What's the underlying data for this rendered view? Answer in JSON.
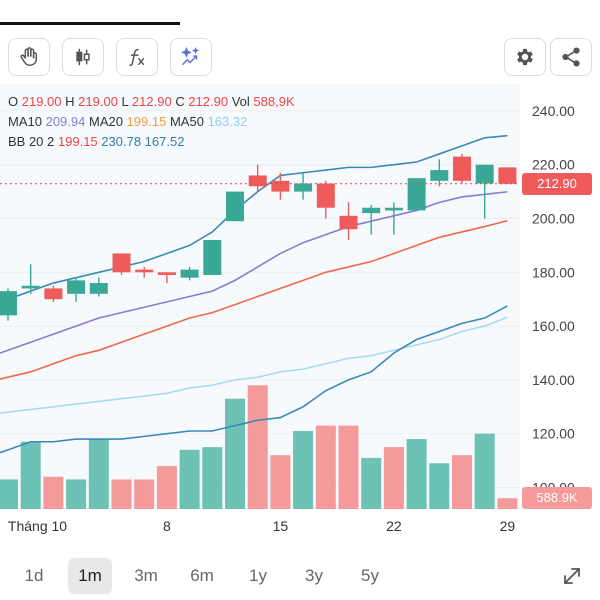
{
  "toolbar": {
    "buttons": [
      {
        "name": "hand-tool-button",
        "icon": "hand-icon"
      },
      {
        "name": "candle-type-button",
        "icon": "candlestick-icon"
      },
      {
        "name": "indicator-button",
        "icon": "function-icon"
      },
      {
        "name": "ai-analysis-button",
        "icon": "sparkle-chart-icon"
      }
    ],
    "right_buttons": [
      {
        "name": "settings-button",
        "icon": "gear-icon"
      },
      {
        "name": "share-button",
        "icon": "share-icon"
      }
    ]
  },
  "legend": {
    "o_label": "O",
    "o": "219.00",
    "h_label": "H",
    "h": "219.00",
    "l_label": "L",
    "l": "212.90",
    "c_label": "C",
    "c": "212.90",
    "vol_label": "Vol",
    "vol": "588,9K",
    "ma10_label": "MA10",
    "ma10": "209.94",
    "ma20_label": "MA20",
    "ma20": "199.15",
    "ma50_label": "MA50",
    "ma50": "163.32",
    "bb_label": "BB 20 2",
    "bb_mid": "199.15",
    "bb_up": "230.78",
    "bb_low": "167.52"
  },
  "badges": {
    "price": "212.90",
    "volume": "588.9K"
  },
  "colors": {
    "up": "#3aa897",
    "down": "#ef5b5b",
    "up_vol": "#6cc3b5",
    "down_vol": "#f49a9a",
    "bb": "#3b8ab5",
    "ma10": "#8b7bd1",
    "ma20": "#f06a4a",
    "ma50": "#a6dcf0",
    "grid": "#eeeeee",
    "price_line": "#e04a4a"
  },
  "chart_data": {
    "type": "candlestick",
    "y_ticks": [
      "240.00",
      "220.00",
      "200.00",
      "180.00",
      "160.00",
      "140.00",
      "120.00",
      "100.00"
    ],
    "y_tick_values": [
      240,
      220,
      200,
      180,
      160,
      140,
      120,
      100
    ],
    "ylim": [
      92,
      250
    ],
    "x_labels": [
      {
        "label": "Tháng 10",
        "index": 1.3
      },
      {
        "label": "8",
        "index": 7
      },
      {
        "label": "15",
        "index": 12
      },
      {
        "label": "22",
        "index": 17
      },
      {
        "label": "29",
        "index": 22
      }
    ],
    "candles": [
      {
        "o": 164,
        "h": 174,
        "l": 162,
        "c": 173
      },
      {
        "o": 174,
        "h": 183,
        "l": 172,
        "c": 175
      },
      {
        "o": 174,
        "h": 175,
        "l": 169,
        "c": 170
      },
      {
        "o": 172,
        "h": 178,
        "l": 169,
        "c": 177
      },
      {
        "o": 172,
        "h": 178,
        "l": 171,
        "c": 176
      },
      {
        "o": 187,
        "h": 187,
        "l": 179,
        "c": 180
      },
      {
        "o": 181,
        "h": 182,
        "l": 178,
        "c": 180
      },
      {
        "o": 180,
        "h": 180,
        "l": 176,
        "c": 179
      },
      {
        "o": 178,
        "h": 182,
        "l": 177,
        "c": 181
      },
      {
        "o": 179,
        "h": 192,
        "l": 179,
        "c": 192
      },
      {
        "o": 199,
        "h": 210,
        "l": 199,
        "c": 210
      },
      {
        "o": 216,
        "h": 220,
        "l": 210,
        "c": 212
      },
      {
        "o": 214,
        "h": 217,
        "l": 207,
        "c": 210
      },
      {
        "o": 210,
        "h": 217,
        "l": 207,
        "c": 213
      },
      {
        "o": 213,
        "h": 214,
        "l": 200,
        "c": 204
      },
      {
        "o": 201,
        "h": 206,
        "l": 192,
        "c": 196
      },
      {
        "o": 202,
        "h": 205,
        "l": 194,
        "c": 204
      },
      {
        "o": 203,
        "h": 206,
        "l": 194,
        "c": 204
      },
      {
        "o": 203,
        "h": 215,
        "l": 203,
        "c": 215
      },
      {
        "o": 214,
        "h": 222,
        "l": 212,
        "c": 218
      },
      {
        "o": 223,
        "h": 224,
        "l": 213,
        "c": 214
      },
      {
        "o": 213,
        "h": 220,
        "l": 200,
        "c": 220
      },
      {
        "o": 219,
        "h": 219,
        "l": 212.9,
        "c": 212.9
      }
    ],
    "volumes": [
      {
        "v": 103,
        "dir": "up"
      },
      {
        "v": 117,
        "dir": "up"
      },
      {
        "v": 104,
        "dir": "down"
      },
      {
        "v": 103,
        "dir": "up"
      },
      {
        "v": 118,
        "dir": "up"
      },
      {
        "v": 103,
        "dir": "down"
      },
      {
        "v": 103,
        "dir": "down"
      },
      {
        "v": 108,
        "dir": "down"
      },
      {
        "v": 114,
        "dir": "up"
      },
      {
        "v": 115,
        "dir": "up"
      },
      {
        "v": 133,
        "dir": "up"
      },
      {
        "v": 138,
        "dir": "down"
      },
      {
        "v": 112,
        "dir": "down"
      },
      {
        "v": 121,
        "dir": "up"
      },
      {
        "v": 123,
        "dir": "down"
      },
      {
        "v": 123,
        "dir": "down"
      },
      {
        "v": 111,
        "dir": "up"
      },
      {
        "v": 115,
        "dir": "down"
      },
      {
        "v": 118,
        "dir": "up"
      },
      {
        "v": 109,
        "dir": "up"
      },
      {
        "v": 112,
        "dir": "down"
      },
      {
        "v": 120,
        "dir": "up"
      },
      {
        "v": 96,
        "dir": "down"
      }
    ],
    "bb_upper": [
      170,
      173,
      176,
      178,
      180,
      182,
      184,
      187,
      190,
      195,
      203,
      210,
      216,
      217,
      218,
      219,
      219,
      220,
      221,
      224,
      227,
      230,
      230.8
    ],
    "bb_lower": [
      114,
      117,
      117,
      118,
      118,
      118,
      119,
      120,
      121,
      121,
      123,
      125,
      126,
      130,
      136,
      140,
      143,
      150,
      155,
      158,
      161,
      163,
      167.5
    ],
    "ma10": [
      151,
      154,
      157,
      160,
      163,
      165,
      167,
      169,
      171,
      173,
      177,
      182,
      187,
      191,
      194,
      197,
      199,
      201,
      203,
      206,
      208,
      209,
      209.9
    ],
    "ma20": [
      141,
      143,
      146,
      149,
      151,
      154,
      157,
      160,
      163,
      165,
      168,
      171,
      174,
      177,
      180,
      182,
      184,
      187,
      190,
      193,
      195,
      197,
      199.15
    ],
    "ma50": [
      128,
      129,
      130,
      131,
      132,
      133,
      134,
      135,
      137,
      138,
      140,
      141,
      143,
      144,
      146,
      148,
      149,
      151,
      153,
      155,
      158,
      160,
      163.3
    ]
  },
  "range_tabs": [
    {
      "label": "1d",
      "active": false
    },
    {
      "label": "1m",
      "active": true
    },
    {
      "label": "3m",
      "active": false
    },
    {
      "label": "6m",
      "active": false
    },
    {
      "label": "1y",
      "active": false
    },
    {
      "label": "3y",
      "active": false
    },
    {
      "label": "5y",
      "active": false
    }
  ]
}
